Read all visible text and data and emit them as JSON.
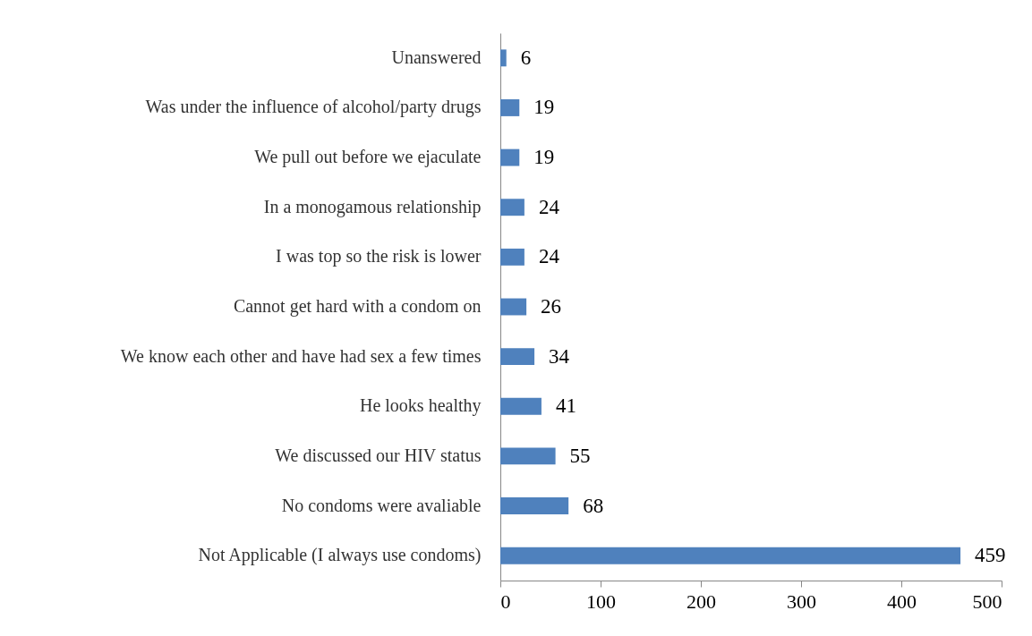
{
  "chart_data": {
    "type": "bar",
    "orientation": "horizontal",
    "categories": [
      "Unanswered",
      "Was under the influence of alcohol/party drugs",
      "We pull out before we ejaculate",
      "In a monogamous relationship",
      "I was top so the risk is lower",
      "Cannot get hard with a condom on",
      "We know each other and have had sex a few times",
      "He looks healthy",
      "We discussed our HIV status",
      "No condoms were avaliable",
      "Not Applicable (I always use condoms)"
    ],
    "values": [
      6,
      19,
      19,
      24,
      24,
      26,
      34,
      41,
      55,
      68,
      459
    ],
    "color": "#4f81bd",
    "xlim": [
      0,
      500
    ],
    "xticks": [
      0,
      100,
      200,
      300,
      400,
      500
    ],
    "grid": false,
    "data_labels": true
  }
}
